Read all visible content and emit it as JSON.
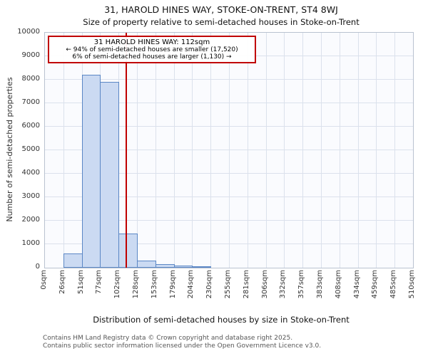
{
  "chart_data": {
    "type": "bar",
    "title": "31, HAROLD HINES WAY, STOKE-ON-TRENT, ST4 8WJ",
    "subtitle": "Size of property relative to semi-detached houses in Stoke-on-Trent",
    "xlabel": "Distribution of semi-detached houses by size in Stoke-on-Trent",
    "ylabel": "Number of semi-detached properties",
    "categories": [
      "0sqm",
      "26sqm",
      "51sqm",
      "77sqm",
      "102sqm",
      "128sqm",
      "153sqm",
      "179sqm",
      "204sqm",
      "230sqm",
      "255sqm",
      "281sqm",
      "306sqm",
      "332sqm",
      "357sqm",
      "383sqm",
      "408sqm",
      "434sqm",
      "459sqm",
      "485sqm",
      "510sqm"
    ],
    "values": [
      0,
      600,
      8200,
      7900,
      1450,
      300,
      140,
      80,
      60,
      0,
      0,
      0,
      0,
      0,
      0,
      0,
      0,
      0,
      0,
      0
    ],
    "y_ticks": [
      0,
      1000,
      2000,
      3000,
      4000,
      5000,
      6000,
      7000,
      8000,
      9000,
      10000
    ],
    "xlim": [
      0,
      510
    ],
    "ylim": [
      0,
      10000
    ],
    "grid": true,
    "legend": "none",
    "bar_fill": "#cbdaf2",
    "bar_border": "#5b87c5",
    "marker": {
      "value": 112,
      "label": "112sqm",
      "color": "#c00000"
    }
  },
  "annotation": {
    "line1": "31 HAROLD HINES WAY: 112sqm",
    "line2": "← 94% of semi-detached houses are smaller (17,520)",
    "line3": "6% of semi-detached houses are larger (1,130) →"
  },
  "footer": {
    "line1": "Contains HM Land Registry data © Crown copyright and database right 2025.",
    "line2": "Contains public sector information licensed under the Open Government Licence v3.0."
  }
}
